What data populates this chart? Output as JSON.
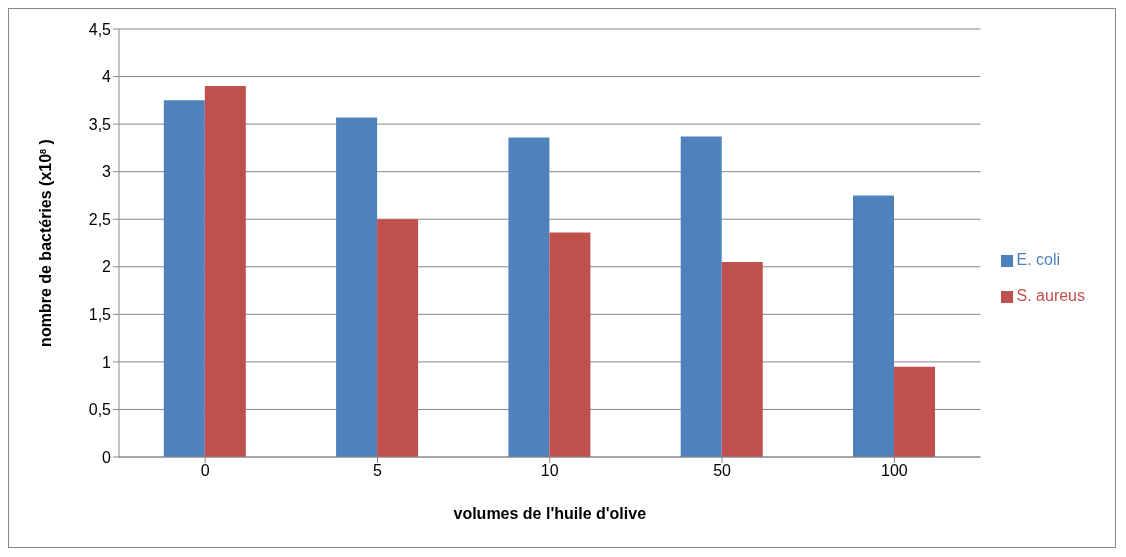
{
  "chart_data": {
    "type": "bar",
    "categories": [
      "0",
      "5",
      "10",
      "50",
      "100"
    ],
    "series": [
      {
        "name": "E. coli",
        "color": "#4f81bd",
        "values": [
          3.75,
          3.57,
          3.36,
          3.37,
          2.75
        ]
      },
      {
        "name": "S. aureus",
        "color": "#c0504d",
        "values": [
          3.9,
          2.5,
          2.36,
          2.05,
          0.95
        ]
      }
    ],
    "xlabel": "volumes de l'huile d'olive",
    "ylabel": "nombre de bactéries (x10$^{8}$ )",
    "ylim": [
      0,
      4.5
    ],
    "yticks": [
      0,
      {
        "value": 0.5,
        "label": "0,5"
      },
      1,
      {
        "value": 1.5,
        "label": "1,5"
      },
      2,
      {
        "value": 2.5,
        "label": "2,5"
      },
      3,
      {
        "value": 3.5,
        "label": "3,5"
      },
      4,
      {
        "value": 4.5,
        "label": "4,5"
      }
    ],
    "grid": "y",
    "legend": "right"
  }
}
